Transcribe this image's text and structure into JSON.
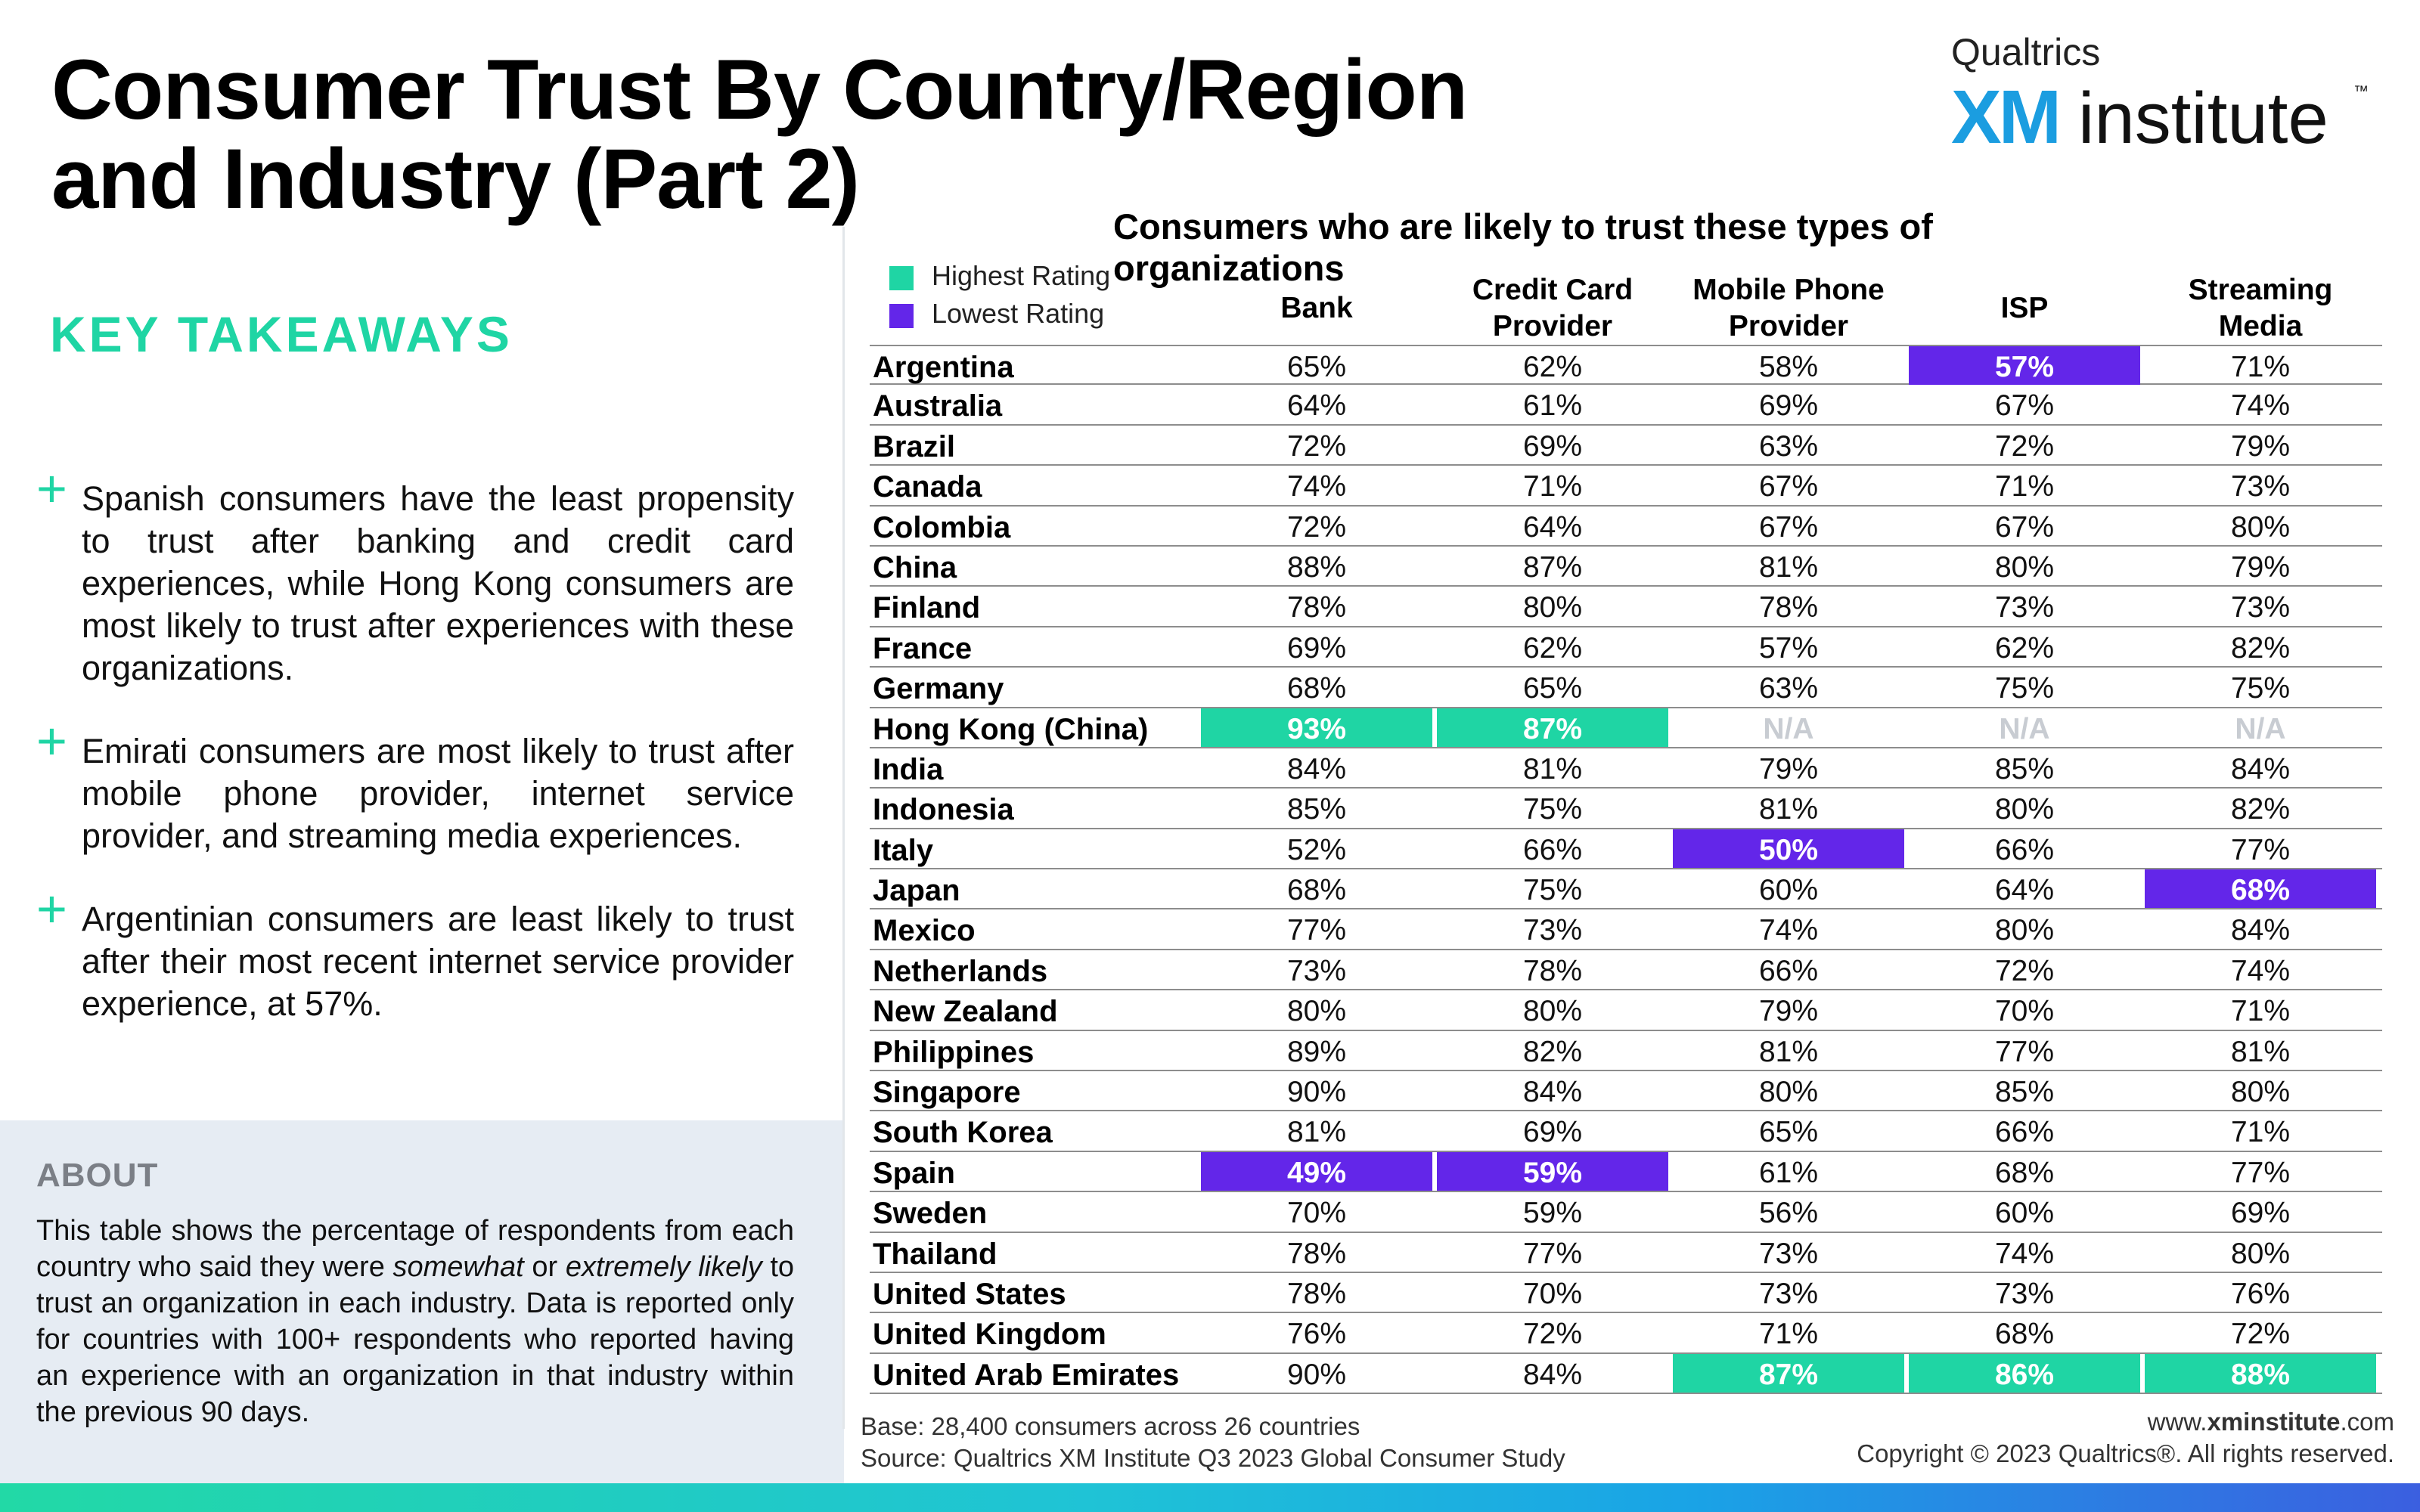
{
  "header": {
    "title": "Consumer Trust By Country/Region and Industry (Part 2)",
    "logo_small": "Qualtrics",
    "logo_xm": "XM",
    "logo_institute": "institute",
    "logo_tm": "™"
  },
  "takeaways": {
    "heading": "KEY TAKEAWAYS",
    "items": [
      "Spanish consumers have the least propensity to trust after banking and credit card experiences, while Hong Kong consumers are most likely to trust after experiences with these organizations.",
      "Emirati consumers are most likely to trust after mobile phone provider, internet service provider, and streaming media experiences.",
      "Argentinian consumers are least likely to trust after their most recent internet service provider experience, at 57%."
    ]
  },
  "about": {
    "heading": "ABOUT",
    "text_1": "This table shows the percentage of respondents from each country who said they were ",
    "em_1": "somewhat",
    "text_2": " or ",
    "em_2": "extremely likely",
    "text_3": " to trust an organization in each industry. Data is reported only for countries with 100+ respondents who reported having an experience with an organization in that industry within the previous 90 days."
  },
  "legend": {
    "highest_label": "Highest Rating",
    "lowest_label": "Lowest Rating",
    "highest_color": "#1fd5a4",
    "lowest_color": "#6326e9"
  },
  "chart_data": {
    "type": "table",
    "title": "Consumers who are likely to trust these types of organizations",
    "columns": [
      "Bank",
      "Credit Card Provider",
      "Mobile Phone Provider",
      "ISP",
      "Streaming Media"
    ],
    "rows": [
      {
        "country": "Argentina",
        "values": [
          "65%",
          "62%",
          "58%",
          "57%",
          "71%"
        ],
        "flags": [
          "",
          "",
          "",
          "lo",
          ""
        ]
      },
      {
        "country": "Australia",
        "values": [
          "64%",
          "61%",
          "69%",
          "67%",
          "74%"
        ],
        "flags": [
          "",
          "",
          "",
          "",
          ""
        ]
      },
      {
        "country": "Brazil",
        "values": [
          "72%",
          "69%",
          "63%",
          "72%",
          "79%"
        ],
        "flags": [
          "",
          "",
          "",
          "",
          ""
        ]
      },
      {
        "country": "Canada",
        "values": [
          "74%",
          "71%",
          "67%",
          "71%",
          "73%"
        ],
        "flags": [
          "",
          "",
          "",
          "",
          ""
        ]
      },
      {
        "country": "Colombia",
        "values": [
          "72%",
          "64%",
          "67%",
          "67%",
          "80%"
        ],
        "flags": [
          "",
          "",
          "",
          "",
          ""
        ]
      },
      {
        "country": "China",
        "values": [
          "88%",
          "87%",
          "81%",
          "80%",
          "79%"
        ],
        "flags": [
          "",
          "",
          "",
          "",
          ""
        ]
      },
      {
        "country": "Finland",
        "values": [
          "78%",
          "80%",
          "78%",
          "73%",
          "73%"
        ],
        "flags": [
          "",
          "",
          "",
          "",
          ""
        ]
      },
      {
        "country": "France",
        "values": [
          "69%",
          "62%",
          "57%",
          "62%",
          "82%"
        ],
        "flags": [
          "",
          "",
          "",
          "",
          ""
        ]
      },
      {
        "country": "Germany",
        "values": [
          "68%",
          "65%",
          "63%",
          "75%",
          "75%"
        ],
        "flags": [
          "",
          "",
          "",
          "",
          ""
        ]
      },
      {
        "country": "Hong Kong (China)",
        "values": [
          "93%",
          "87%",
          "N/A",
          "N/A",
          "N/A"
        ],
        "flags": [
          "hi",
          "hi",
          "na",
          "na",
          "na"
        ]
      },
      {
        "country": "India",
        "values": [
          "84%",
          "81%",
          "79%",
          "85%",
          "84%"
        ],
        "flags": [
          "",
          "",
          "",
          "",
          ""
        ]
      },
      {
        "country": "Indonesia",
        "values": [
          "85%",
          "75%",
          "81%",
          "80%",
          "82%"
        ],
        "flags": [
          "",
          "",
          "",
          "",
          ""
        ]
      },
      {
        "country": "Italy",
        "values": [
          "52%",
          "66%",
          "50%",
          "66%",
          "77%"
        ],
        "flags": [
          "",
          "",
          "lo",
          "",
          ""
        ]
      },
      {
        "country": "Japan",
        "values": [
          "68%",
          "75%",
          "60%",
          "64%",
          "68%"
        ],
        "flags": [
          "",
          "",
          "",
          "",
          "lo"
        ]
      },
      {
        "country": "Mexico",
        "values": [
          "77%",
          "73%",
          "74%",
          "80%",
          "84%"
        ],
        "flags": [
          "",
          "",
          "",
          "",
          ""
        ]
      },
      {
        "country": "Netherlands",
        "values": [
          "73%",
          "78%",
          "66%",
          "72%",
          "74%"
        ],
        "flags": [
          "",
          "",
          "",
          "",
          ""
        ]
      },
      {
        "country": "New Zealand",
        "values": [
          "80%",
          "80%",
          "79%",
          "70%",
          "71%"
        ],
        "flags": [
          "",
          "",
          "",
          "",
          ""
        ]
      },
      {
        "country": "Philippines",
        "values": [
          "89%",
          "82%",
          "81%",
          "77%",
          "81%"
        ],
        "flags": [
          "",
          "",
          "",
          "",
          ""
        ]
      },
      {
        "country": "Singapore",
        "values": [
          "90%",
          "84%",
          "80%",
          "85%",
          "80%"
        ],
        "flags": [
          "",
          "",
          "",
          "",
          ""
        ]
      },
      {
        "country": "South Korea",
        "values": [
          "81%",
          "69%",
          "65%",
          "66%",
          "71%"
        ],
        "flags": [
          "",
          "",
          "",
          "",
          ""
        ]
      },
      {
        "country": "Spain",
        "values": [
          "49%",
          "59%",
          "61%",
          "68%",
          "77%"
        ],
        "flags": [
          "lo",
          "lo",
          "",
          "",
          ""
        ]
      },
      {
        "country": "Sweden",
        "values": [
          "70%",
          "59%",
          "56%",
          "60%",
          "69%"
        ],
        "flags": [
          "",
          "",
          "",
          "",
          ""
        ]
      },
      {
        "country": "Thailand",
        "values": [
          "78%",
          "77%",
          "73%",
          "74%",
          "80%"
        ],
        "flags": [
          "",
          "",
          "",
          "",
          ""
        ]
      },
      {
        "country": "United States",
        "values": [
          "78%",
          "70%",
          "73%",
          "73%",
          "76%"
        ],
        "flags": [
          "",
          "",
          "",
          "",
          ""
        ]
      },
      {
        "country": "United Kingdom",
        "values": [
          "76%",
          "72%",
          "71%",
          "68%",
          "72%"
        ],
        "flags": [
          "",
          "",
          "",
          "",
          ""
        ]
      },
      {
        "country": "United Arab Emirates",
        "values": [
          "90%",
          "84%",
          "87%",
          "86%",
          "88%"
        ],
        "flags": [
          "",
          "",
          "hi",
          "hi",
          "hi"
        ]
      }
    ]
  },
  "footer": {
    "base": "Base: 28,400 consumers across 26 countries",
    "source": "Source: Qualtrics XM Institute Q3 2023 Global Consumer Study",
    "site_prefix": "www.",
    "site_bold": "xminstitute",
    "site_suffix": ".com",
    "copyright": "Copyright © 2023 Qualtrics®. All rights reserved."
  }
}
